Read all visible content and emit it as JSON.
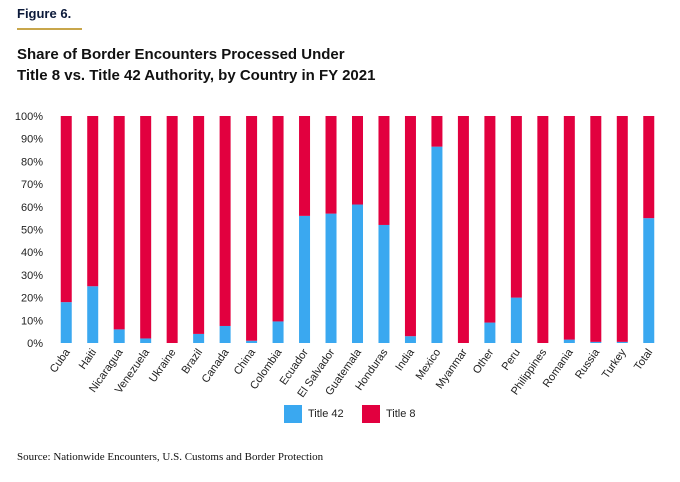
{
  "figure_label": "Figure 6.",
  "title_line1": "Share of Border Encounters Processed Under",
  "title_line2": "Title 8 vs. Title 42 Authority, by Country in FY 2021",
  "source": "Source: Nationwide Encounters, U.S. Customs and Border Protection",
  "colors": {
    "title42": "#3aa8f0",
    "title8": "#e2003f"
  },
  "chart_data": {
    "type": "bar",
    "stacked": true,
    "categories": [
      "Cuba",
      "Haiti",
      "Nicaragua",
      "Venezuela",
      "Ukraine",
      "Brazil",
      "Canada",
      "China",
      "Colombia",
      "Ecuador",
      "El Salvador",
      "Guatemala",
      "Honduras",
      "India",
      "Mexico",
      "Myanmar",
      "Other",
      "Peru",
      "Philippines",
      "Romania",
      "Russia",
      "Turkey",
      "Total"
    ],
    "series": [
      {
        "name": "Title 42",
        "values": [
          18,
          25,
          6,
          2,
          0,
          4,
          7.5,
          1,
          9.5,
          56,
          57,
          61,
          52,
          3,
          86.5,
          0,
          9,
          20,
          0,
          1.5,
          0.5,
          0.5,
          55
        ]
      },
      {
        "name": "Title 8",
        "values": [
          82,
          75,
          94,
          98,
          100,
          96,
          92.5,
          99,
          90.5,
          44,
          43,
          39,
          48,
          97,
          13.5,
          100,
          91,
          80,
          100,
          98.5,
          99.5,
          99.5,
          45
        ]
      }
    ],
    "yticks": [
      "0%",
      "10%",
      "20%",
      "30%",
      "40%",
      "50%",
      "60%",
      "70%",
      "80%",
      "90%",
      "100%"
    ],
    "ylim": [
      0,
      100
    ],
    "xlabel": "",
    "ylabel": "",
    "grid": false,
    "legend_placement": "bottom-center"
  }
}
